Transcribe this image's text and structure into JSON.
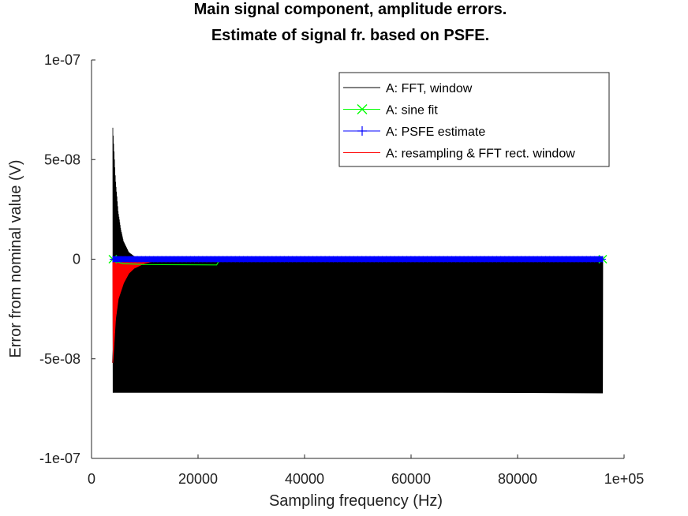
{
  "chart_data": {
    "type": "line",
    "title": [
      "Main signal component, amplitude errors.",
      "Estimate of signal fr. based on PSFE."
    ],
    "xlabel": "Sampling frequency (Hz)",
    "ylabel": "Error from nominal value (V)",
    "xlim": [
      0,
      100000
    ],
    "ylim": [
      -1e-07,
      1e-07
    ],
    "x_ticks": [
      0,
      20000,
      40000,
      60000,
      80000,
      100000
    ],
    "x_tick_labels": [
      "0",
      "20000",
      "40000",
      "60000",
      "80000",
      "1e+05"
    ],
    "y_ticks": [
      1e-07,
      5e-08,
      0,
      -5e-08,
      -1e-07
    ],
    "y_tick_labels": [
      "1e-07",
      "5e-08",
      "0",
      "-5e-08",
      "-1e-07"
    ],
    "legend_position": "top-right",
    "series": [
      {
        "name": "A: FFT, window",
        "color": "#000000",
        "marker": "none",
        "x_range": [
          4000,
          96000
        ],
        "upper_envelope": [
          [
            4000,
            6.6e-08
          ],
          [
            4500,
            4e-08
          ],
          [
            5000,
            2.4e-08
          ],
          [
            5500,
            1.5e-08
          ],
          [
            6000,
            9e-09
          ],
          [
            7000,
            3.5e-09
          ],
          [
            8000,
            1.5e-09
          ],
          [
            10000,
            3e-10
          ],
          [
            14000,
            0
          ],
          [
            96000,
            0
          ]
        ],
        "lower_envelope": [
          [
            4000,
            -6.7e-08
          ],
          [
            96000,
            -6.7e-08
          ]
        ],
        "mean_curve": [
          [
            4000,
            -5.2e-08
          ],
          [
            4500,
            -2.4e-08
          ],
          [
            5000,
            -1.6e-08
          ],
          [
            6000,
            -1.7e-08
          ],
          [
            8000,
            -3e-08
          ],
          [
            10000,
            -4e-08
          ],
          [
            13000,
            -5e-08
          ],
          [
            17000,
            -5.7e-08
          ],
          [
            23000,
            -6.1e-08
          ],
          [
            30000,
            -6.4e-08
          ],
          [
            40000,
            -6.55e-08
          ],
          [
            55000,
            -6.65e-08
          ],
          [
            96000,
            -6.7e-08
          ]
        ]
      },
      {
        "name": "A: sine fit",
        "color": "#00ff00",
        "marker": "x",
        "x_range": [
          4000,
          96000
        ],
        "values": [
          [
            4000,
            0
          ],
          [
            4200,
            -1e-09
          ],
          [
            6000,
            -2.2e-09
          ],
          [
            10000,
            -2.7e-09
          ],
          [
            23500,
            -2.9e-09
          ],
          [
            24000,
            -5e-10
          ],
          [
            40000,
            -2e-10
          ],
          [
            96000,
            -2e-10
          ]
        ]
      },
      {
        "name": "A: PSFE estimate",
        "color": "#0000ff",
        "marker": "+",
        "x_range": [
          4000,
          96000
        ],
        "values": [
          [
            4000,
            0
          ],
          [
            96000,
            0
          ]
        ],
        "spread": 1.5e-09
      },
      {
        "name": "A: resampling & FFT rect. window",
        "color": "#ff0000",
        "marker": "none",
        "x_range": [
          4000,
          15000
        ],
        "lower_envelope": [
          [
            4000,
            -5.2e-08
          ],
          [
            4500,
            -3e-08
          ],
          [
            5000,
            -2e-08
          ],
          [
            6000,
            -1.2e-08
          ],
          [
            7000,
            -7e-09
          ],
          [
            8000,
            -4.5e-09
          ],
          [
            10000,
            -2e-09
          ],
          [
            12000,
            -8e-10
          ],
          [
            15000,
            0
          ]
        ],
        "upper_value": 0
      }
    ]
  }
}
